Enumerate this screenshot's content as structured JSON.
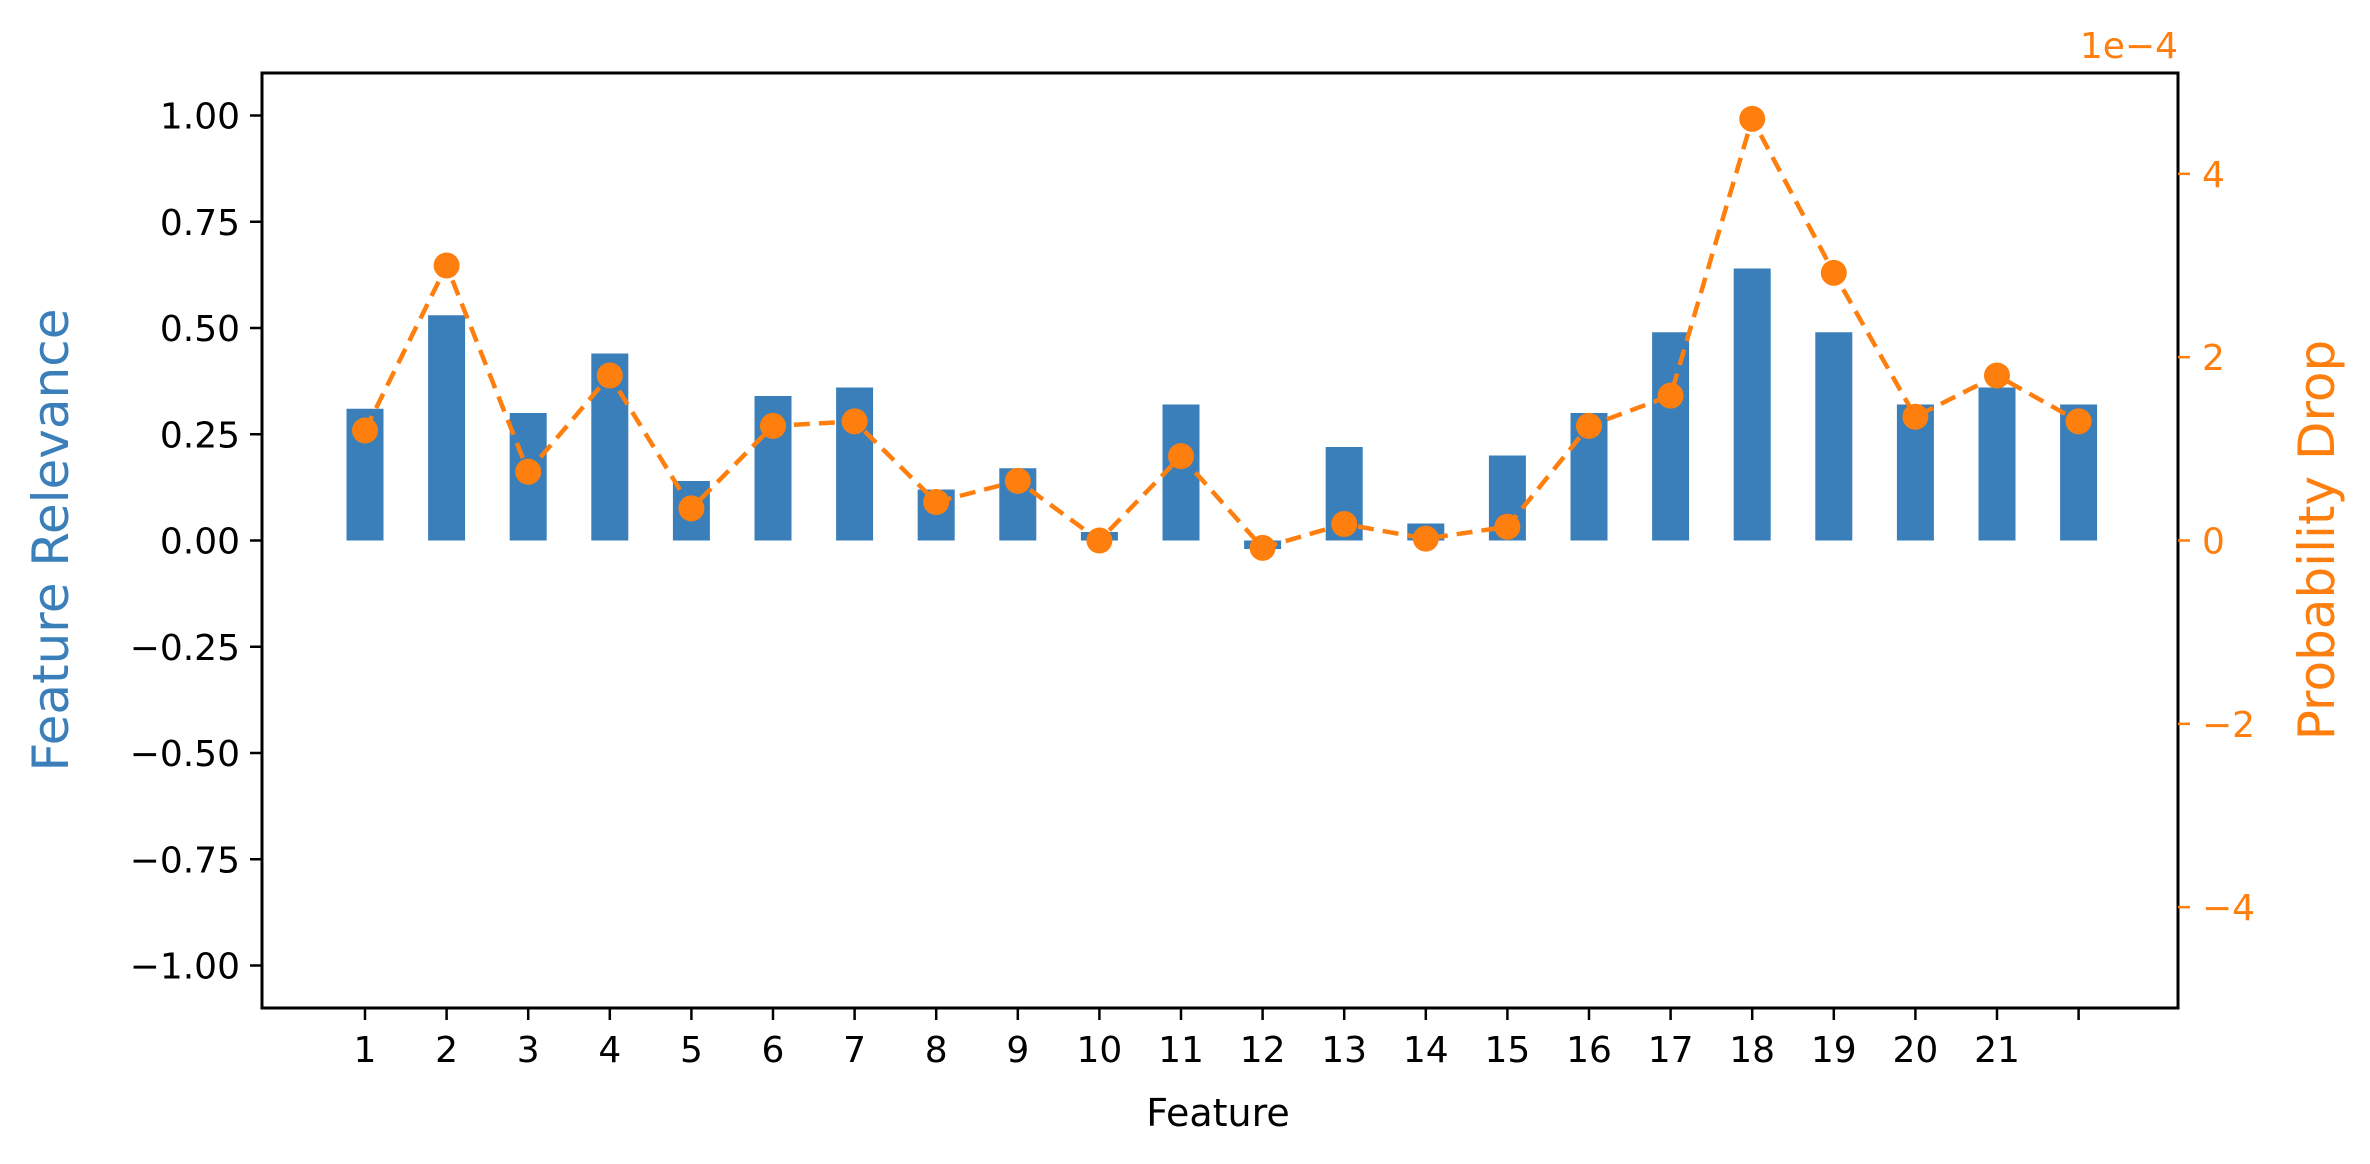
{
  "chart_data": {
    "type": "bar",
    "xlabel": "Feature",
    "categories": [
      "1",
      "2",
      "3",
      "4",
      "5",
      "6",
      "7",
      "8",
      "9",
      "10",
      "11",
      "12",
      "13",
      "14",
      "15",
      "16",
      "17",
      "18",
      "19",
      "20",
      "21",
      ""
    ],
    "ylabel_left": "Feature Relevance",
    "ylim_left": [
      -1.1,
      1.1
    ],
    "yticks_left": [
      "1.00",
      "0.75",
      "0.50",
      "0.25",
      "0.00",
      "−0.25",
      "−0.50",
      "−0.75",
      "−1.00"
    ],
    "yticks_left_values": [
      1.0,
      0.75,
      0.5,
      0.25,
      0.0,
      -0.25,
      -0.5,
      -0.75,
      -1.0
    ],
    "ylabel_right": "Probability Drop",
    "ylim_right": [
      -5.1,
      5.1
    ],
    "right_scale_label": "1e−4",
    "yticks_right": [
      "4",
      "2",
      "0",
      "−2",
      "−4"
    ],
    "yticks_right_values": [
      4,
      2,
      0,
      -2,
      -4
    ],
    "series": [
      {
        "type": "bar",
        "axis": "left",
        "color": "#3a7fb9",
        "values": [
          0.31,
          0.53,
          0.3,
          0.44,
          0.14,
          0.34,
          0.36,
          0.12,
          0.17,
          0.02,
          0.32,
          -0.02,
          0.22,
          0.04,
          0.2,
          0.3,
          0.49,
          0.64,
          0.49,
          0.32,
          0.36,
          0.32
        ]
      },
      {
        "type": "line",
        "axis": "right",
        "style": "dashed",
        "marker": "circle",
        "color": "#ff7f0e",
        "values": [
          1.2,
          3.0,
          0.75,
          1.8,
          0.35,
          1.25,
          1.3,
          0.42,
          0.65,
          0.0,
          0.92,
          -0.08,
          0.18,
          0.02,
          0.15,
          1.25,
          1.58,
          4.6,
          2.92,
          1.35,
          1.8,
          1.3
        ]
      }
    ],
    "grid": false,
    "legend": "none"
  }
}
